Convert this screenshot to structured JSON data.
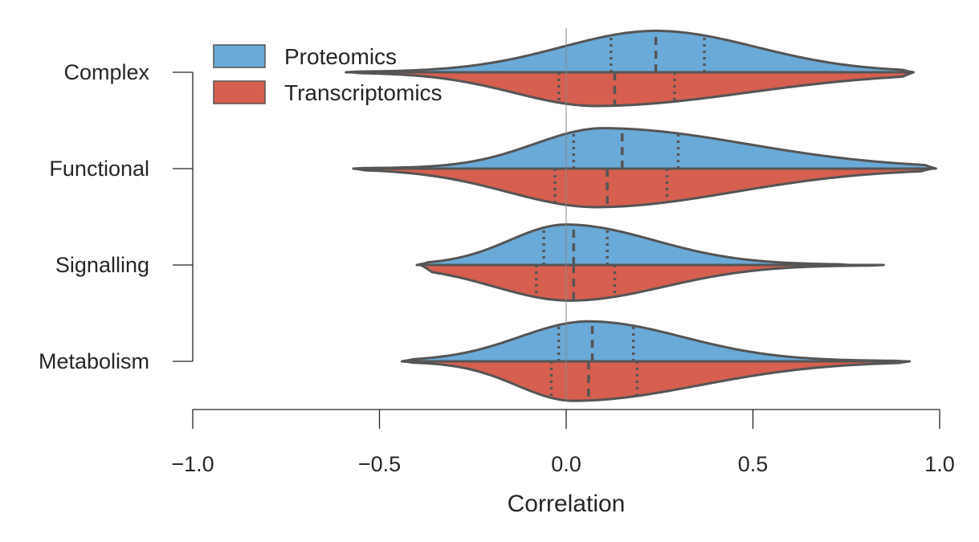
{
  "chart_data": {
    "type": "violin",
    "orientation": "horizontal",
    "split": true,
    "title": "",
    "xlabel": "Correlation",
    "ylabel": "",
    "xlim": [
      -1.0,
      1.0
    ],
    "xticks": [
      -1.0,
      -0.5,
      0.0,
      0.5,
      1.0
    ],
    "xtick_labels": [
      "−1.0",
      "−0.5",
      "0.0",
      "0.5",
      "1.0"
    ],
    "categories": [
      "Complex",
      "Functional",
      "Signalling",
      "Metabolism"
    ],
    "grid": false,
    "zero_reference_line": true,
    "legend": {
      "position": "top-left"
    },
    "colors": {
      "Proteomics": "#6aaad8",
      "Transcriptomics": "#d65f4f",
      "outline": "#555555"
    },
    "series": [
      {
        "name": "Proteomics",
        "side": "upper",
        "violins": [
          {
            "category": "Complex",
            "min": -0.59,
            "max": 0.93,
            "q1": 0.12,
            "median": 0.24,
            "q3": 0.37,
            "peak": 0.24,
            "max_density_height": 0.86
          },
          {
            "category": "Functional",
            "min": -0.57,
            "max": 0.99,
            "q1": 0.02,
            "median": 0.15,
            "q3": 0.3,
            "peak": 0.1,
            "max_density_height": 0.84
          },
          {
            "category": "Signalling",
            "min": -0.4,
            "max": 0.76,
            "q1": -0.06,
            "median": 0.02,
            "q3": 0.11,
            "peak": 0.0,
            "max_density_height": 0.84
          },
          {
            "category": "Metabolism",
            "min": -0.44,
            "max": 0.91,
            "q1": -0.02,
            "median": 0.07,
            "q3": 0.18,
            "peak": 0.06,
            "max_density_height": 0.83
          }
        ]
      },
      {
        "name": "Transcriptomics",
        "side": "lower",
        "violins": [
          {
            "category": "Complex",
            "min": -0.58,
            "max": 0.93,
            "q1": -0.02,
            "median": 0.13,
            "q3": 0.29,
            "peak": 0.08,
            "max_density_height": 0.7
          },
          {
            "category": "Functional",
            "min": -0.57,
            "max": 0.98,
            "q1": -0.03,
            "median": 0.11,
            "q3": 0.27,
            "peak": 0.08,
            "max_density_height": 0.8
          },
          {
            "category": "Signalling",
            "min": -0.39,
            "max": 0.85,
            "q1": -0.08,
            "median": 0.02,
            "q3": 0.13,
            "peak": 0.01,
            "max_density_height": 0.74
          },
          {
            "category": "Metabolism",
            "min": -0.44,
            "max": 0.92,
            "q1": -0.04,
            "median": 0.06,
            "q3": 0.19,
            "peak": 0.02,
            "max_density_height": 0.82
          }
        ]
      }
    ]
  }
}
